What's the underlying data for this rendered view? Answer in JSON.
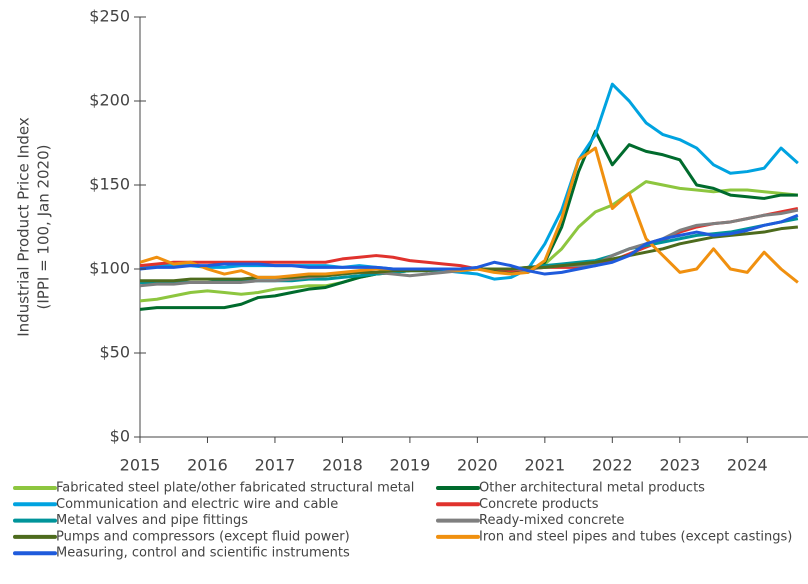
{
  "chart_data": {
    "type": "line",
    "y_label": [
      "Industrial Product Price Index",
      "(IPPI = 100, Jan 2020)"
    ],
    "x": [
      2015,
      2015.25,
      2015.5,
      2015.75,
      2016,
      2016.25,
      2016.5,
      2016.75,
      2017,
      2017.25,
      2017.5,
      2017.75,
      2018,
      2018.25,
      2018.5,
      2018.75,
      2019,
      2019.25,
      2019.5,
      2019.75,
      2020,
      2020.25,
      2020.5,
      2020.75,
      2021,
      2021.25,
      2021.5,
      2021.75,
      2022,
      2022.25,
      2022.5,
      2022.75,
      2023,
      2023.25,
      2023.5,
      2023.75,
      2024,
      2024.25,
      2024.5,
      2024.75
    ],
    "xlim": [
      2015,
      2024.9
    ],
    "xticks": [
      2015,
      2016,
      2017,
      2018,
      2019,
      2020,
      2021,
      2022,
      2023,
      2024
    ],
    "ylim": [
      0,
      250
    ],
    "yticks": [
      {
        "value": 0,
        "label": "$0"
      },
      {
        "value": 50,
        "label": "$50"
      },
      {
        "value": 100,
        "label": "$100"
      },
      {
        "value": 150,
        "label": "$150"
      },
      {
        "value": 200,
        "label": "$200"
      },
      {
        "value": 250,
        "label": "$250"
      }
    ],
    "series": [
      {
        "name": "Fabricated steel plate/other fabricated structural metal",
        "color": "#8dc63f",
        "values": [
          81,
          82,
          84,
          86,
          87,
          86,
          85,
          86,
          88,
          89,
          90,
          90,
          92,
          95,
          97,
          98,
          99,
          100,
          100,
          100,
          100,
          99,
          98,
          99,
          103,
          112,
          125,
          134,
          138,
          145,
          152,
          150,
          148,
          147,
          146,
          147,
          147,
          146,
          145,
          144
        ]
      },
      {
        "name": "Other architectural metal products",
        "color": "#006b2d",
        "values": [
          76,
          77,
          77,
          77,
          77,
          77,
          79,
          83,
          84,
          86,
          88,
          89,
          92,
          95,
          97,
          98,
          99,
          99,
          100,
          100,
          100,
          99,
          98,
          98,
          104,
          125,
          158,
          182,
          162,
          174,
          170,
          168,
          165,
          150,
          148,
          144,
          143,
          142,
          144,
          144
        ]
      },
      {
        "name": "Communication and electric wire and cable",
        "color": "#00a3e0",
        "values": [
          101,
          102,
          102,
          102,
          101,
          101,
          102,
          102,
          102,
          102,
          102,
          102,
          101,
          102,
          101,
          100,
          100,
          99,
          99,
          98,
          97,
          94,
          95,
          100,
          115,
          135,
          165,
          180,
          210,
          200,
          187,
          180,
          177,
          172,
          162,
          157,
          158,
          160,
          172,
          163
        ]
      },
      {
        "name": "Concrete products",
        "color": "#e0322d",
        "values": [
          102,
          103,
          104,
          104,
          104,
          104,
          104,
          104,
          104,
          104,
          104,
          104,
          106,
          107,
          108,
          107,
          105,
          104,
          103,
          102,
          100,
          100,
          99,
          100,
          101,
          101,
          101,
          102,
          105,
          109,
          113,
          117,
          122,
          125,
          127,
          128,
          130,
          132,
          134,
          136
        ]
      },
      {
        "name": "Metal valves and pipe fittings",
        "color": "#00949a",
        "values": [
          92,
          92,
          92,
          92,
          92,
          93,
          93,
          93,
          93,
          93,
          94,
          94,
          95,
          96,
          97,
          98,
          99,
          99,
          100,
          100,
          100,
          100,
          100,
          101,
          102,
          103,
          104,
          105,
          108,
          112,
          114,
          116,
          118,
          120,
          121,
          122,
          124,
          126,
          128,
          130
        ]
      },
      {
        "name": "Ready-mixed concrete",
        "color": "#7f7f7f",
        "values": [
          90,
          91,
          91,
          92,
          92,
          92,
          92,
          93,
          93,
          94,
          95,
          96,
          97,
          98,
          98,
          97,
          96,
          97,
          98,
          99,
          100,
          100,
          100,
          100,
          101,
          102,
          102,
          103,
          108,
          112,
          115,
          118,
          123,
          126,
          127,
          128,
          130,
          132,
          133,
          135
        ]
      },
      {
        "name": "Pumps and compressors (except fluid power)",
        "color": "#4d6b1d",
        "values": [
          93,
          93,
          93,
          94,
          94,
          94,
          94,
          95,
          95,
          95,
          96,
          96,
          97,
          98,
          98,
          99,
          99,
          99,
          100,
          100,
          100,
          100,
          100,
          101,
          101,
          102,
          103,
          104,
          106,
          108,
          110,
          112,
          115,
          117,
          119,
          120,
          121,
          122,
          124,
          125
        ]
      },
      {
        "name": "Iron and steel pipes and tubes (except castings)",
        "color": "#f0900f",
        "values": [
          104,
          107,
          103,
          104,
          100,
          97,
          99,
          95,
          95,
          96,
          97,
          97,
          98,
          99,
          100,
          100,
          100,
          100,
          100,
          99,
          100,
          98,
          97,
          98,
          105,
          130,
          165,
          172,
          136,
          145,
          118,
          108,
          98,
          100,
          112,
          100,
          98,
          110,
          100,
          92
        ]
      },
      {
        "name": "Measuring, control and scientific instruments",
        "color": "#1f5bdc",
        "values": [
          100,
          101,
          101,
          102,
          102,
          103,
          103,
          103,
          102,
          102,
          101,
          101,
          101,
          101,
          101,
          100,
          100,
          100,
          100,
          100,
          101,
          104,
          102,
          99,
          97,
          98,
          100,
          102,
          104,
          108,
          115,
          118,
          120,
          122,
          120,
          121,
          123,
          126,
          128,
          132
        ]
      }
    ]
  }
}
